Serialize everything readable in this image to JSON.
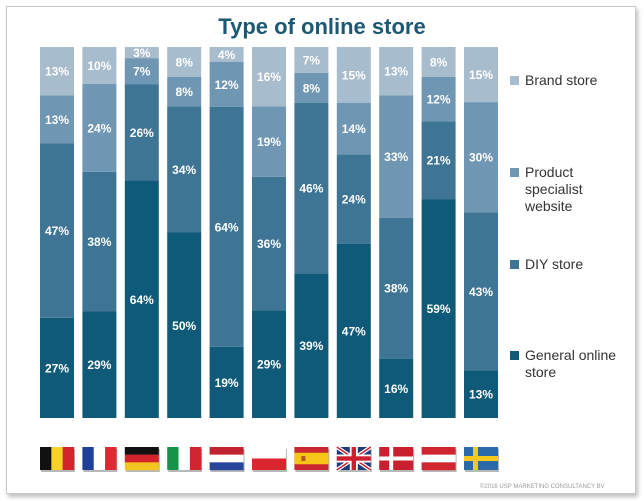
{
  "chart_data": {
    "type": "stacked-bar",
    "title": "Type of online store",
    "categories": [
      "Belgium",
      "France",
      "Germany",
      "Italy",
      "Netherlands",
      "Poland",
      "Spain",
      "United Kingdom",
      "Denmark",
      "Austria",
      "Sweden"
    ],
    "series": [
      {
        "name": "General online store",
        "color": "#0f5a78",
        "values": [
          27,
          29,
          64,
          50,
          19,
          29,
          39,
          47,
          16,
          59,
          13
        ]
      },
      {
        "name": "DIY store",
        "color": "#3f7594",
        "values": [
          47,
          38,
          26,
          34,
          64,
          36,
          46,
          24,
          38,
          21,
          43
        ]
      },
      {
        "name": "Product specialist website",
        "color": "#6f96b2",
        "values": [
          13,
          24,
          7,
          8,
          12,
          19,
          8,
          14,
          33,
          12,
          30
        ]
      },
      {
        "name": "Brand store",
        "color": "#a7bccd",
        "values": [
          13,
          10,
          3,
          8,
          4,
          16,
          7,
          15,
          13,
          8,
          15
        ]
      }
    ],
    "legend": [
      "Brand store",
      "Product specialist website",
      "DIY store",
      "General online store"
    ],
    "legend_position": "right",
    "ylim": [
      0,
      100
    ]
  },
  "flags": [
    "belgium-flag-icon",
    "france-flag-icon",
    "germany-flag-icon",
    "italy-flag-icon",
    "netherlands-flag-icon",
    "poland-flag-icon",
    "spain-flag-icon",
    "uk-flag-icon",
    "denmark-flag-icon",
    "austria-flag-icon",
    "sweden-flag-icon"
  ],
  "copyright": "©2016 USP MARKETING CONSULTANCY BV"
}
